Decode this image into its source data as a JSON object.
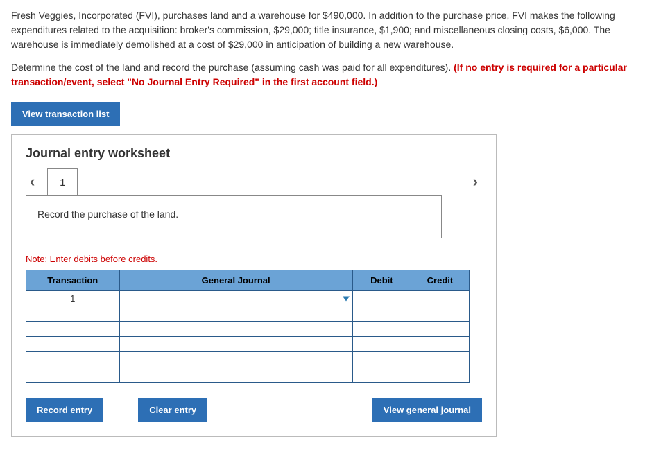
{
  "problem": {
    "para1": "Fresh Veggies, Incorporated (FVI), purchases land and a warehouse for $490,000. In addition to the purchase price, FVI makes the following expenditures related to the acquisition: broker's commission, $29,000; title insurance, $1,900; and miscellaneous closing costs, $6,000. The warehouse is immediately demolished at a cost of $29,000 in anticipation of building a new warehouse.",
    "para2_plain": "Determine the cost of the land and record the purchase (assuming cash was paid for all expenditures). ",
    "para2_red": "(If no entry is required for a particular transaction/event, select \"No Journal Entry Required\" in the first account field.)"
  },
  "buttons": {
    "view_list": "View transaction list",
    "record_entry": "Record entry",
    "clear_entry": "Clear entry",
    "view_general": "View general journal"
  },
  "worksheet": {
    "title": "Journal entry worksheet",
    "tab_label": "1",
    "instruction": "Record the purchase of the land.",
    "note": "Note: Enter debits before credits.",
    "columns": {
      "transaction": "Transaction",
      "general_journal": "General Journal",
      "debit": "Debit",
      "credit": "Credit"
    },
    "rows": [
      {
        "transaction": "1",
        "gj": "",
        "debit": "",
        "credit": "",
        "gj_dashed": true,
        "has_dropdown": true
      },
      {
        "transaction": "",
        "gj": "",
        "debit": "",
        "credit": ""
      },
      {
        "transaction": "",
        "gj": "",
        "debit": "",
        "credit": ""
      },
      {
        "transaction": "",
        "gj": "",
        "debit": "",
        "credit": ""
      },
      {
        "transaction": "",
        "gj": "",
        "debit": "",
        "credit": ""
      },
      {
        "transaction": "",
        "gj": "",
        "debit": "",
        "credit": ""
      }
    ],
    "colors": {
      "header_bg": "#6ba3d6",
      "border": "#2a5a8a",
      "btn_bg": "#2d6fb5",
      "note_red": "#c00"
    }
  }
}
